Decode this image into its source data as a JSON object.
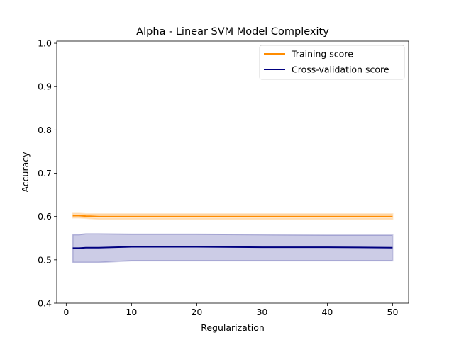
{
  "chart_data": {
    "type": "line",
    "title": "Alpha - Linear SVM Model Complexity",
    "xlabel": "Regularization",
    "ylabel": "Accuracy",
    "xlim": [
      -1.45,
      52.45
    ],
    "ylim": [
      0.4,
      1.005
    ],
    "xticks": [
      0,
      10,
      20,
      30,
      40,
      50
    ],
    "yticks": [
      0.4,
      0.5,
      0.6,
      0.7,
      0.8,
      0.9,
      1.0
    ],
    "xtick_labels": [
      "0",
      "10",
      "20",
      "30",
      "40",
      "50"
    ],
    "ytick_labels": [
      "0.4",
      "0.5",
      "0.6",
      "0.7",
      "0.8",
      "0.9",
      "1.0"
    ],
    "legend_position": "top-right",
    "series": [
      {
        "name": "Training score",
        "color": "#ff8c00",
        "x": [
          1,
          2,
          3,
          5,
          10,
          20,
          30,
          40,
          50
        ],
        "y": [
          0.602,
          0.602,
          0.601,
          0.6,
          0.6,
          0.6,
          0.6,
          0.6,
          0.6
        ],
        "band_upper": [
          0.607,
          0.607,
          0.606,
          0.606,
          0.606,
          0.606,
          0.606,
          0.606,
          0.606
        ],
        "band_lower": [
          0.597,
          0.597,
          0.596,
          0.594,
          0.594,
          0.594,
          0.594,
          0.594,
          0.594
        ]
      },
      {
        "name": "Cross-validation score",
        "color": "#000080",
        "x": [
          1,
          2,
          3,
          5,
          10,
          20,
          30,
          40,
          50
        ],
        "y": [
          0.527,
          0.527,
          0.528,
          0.528,
          0.53,
          0.53,
          0.529,
          0.529,
          0.528
        ],
        "band_upper": [
          0.558,
          0.558,
          0.56,
          0.56,
          0.559,
          0.559,
          0.558,
          0.557,
          0.557
        ],
        "band_lower": [
          0.494,
          0.494,
          0.494,
          0.494,
          0.498,
          0.498,
          0.498,
          0.498,
          0.498
        ]
      }
    ]
  }
}
